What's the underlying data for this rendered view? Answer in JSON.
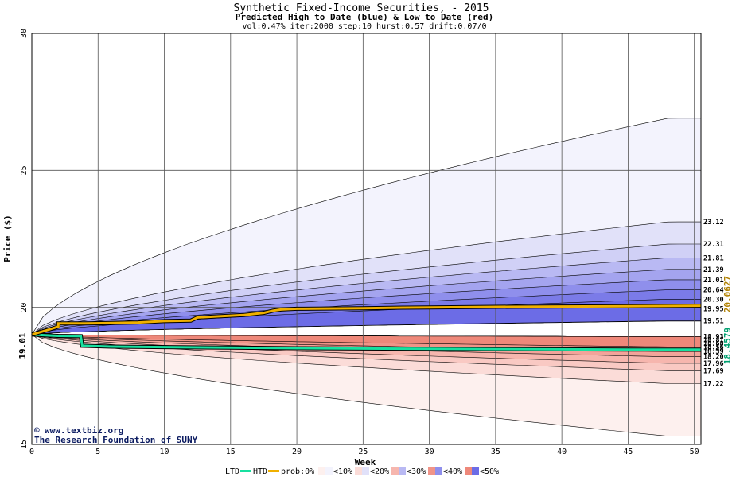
{
  "chart_data": {
    "type": "area",
    "title": "Synthetic Fixed-Income Securities,  - 2015",
    "subtitle": "Predicted High to Date (blue) &  Low to Date (red)",
    "params": "vol:0.47% iter:2000 step:10 hurst:0.57 drift:0.07/0",
    "xlabel": "Week",
    "ylabel": "Price ($)",
    "xlim": [
      0,
      50.5
    ],
    "ylim": [
      15,
      30
    ],
    "xticks": [
      0,
      5,
      10,
      15,
      20,
      25,
      30,
      35,
      40,
      45,
      50
    ],
    "yticks": [
      15,
      20,
      25,
      30
    ],
    "grid": true,
    "start_value": "19.01",
    "htd_final_label": "20.0627",
    "ltd_final_label": "18.4579",
    "blue_bands": [
      {
        "level": "<10%",
        "color": "#f3f3fd",
        "upper": 26.9,
        "lower": 19.5
      },
      {
        "level": "<20%",
        "color": "#e1e1f9",
        "upper": 23.12,
        "lower": 19.51
      },
      {
        "level": "<20%",
        "color": "#d0d0f6",
        "upper": 22.31,
        "lower": 19.51
      },
      {
        "level": "<30%",
        "color": "#b9b9f3",
        "upper": 21.81,
        "lower": 19.51
      },
      {
        "level": "<30%",
        "color": "#a4a4ef",
        "upper": 21.39,
        "lower": 19.51
      },
      {
        "level": "<40%",
        "color": "#8f8fec",
        "upper": 21.01,
        "lower": 19.51
      },
      {
        "level": "<40%",
        "color": "#7b7be8",
        "upper": 20.64,
        "lower": 19.51
      },
      {
        "level": "<50%",
        "color": "#6c6ce6",
        "upper": 20.3,
        "lower": 19.51
      }
    ],
    "red_bands": [
      {
        "level": "<10%",
        "color": "#fdf0ee",
        "lower": 15.3,
        "upper": 18.93
      },
      {
        "level": "<20%",
        "color": "#fbdcd8",
        "lower": 17.22,
        "upper": 18.93
      },
      {
        "level": "<20%",
        "color": "#f9c9c3",
        "lower": 17.69,
        "upper": 18.93
      },
      {
        "level": "<30%",
        "color": "#f6b6ae",
        "lower": 17.96,
        "upper": 18.93
      },
      {
        "level": "<30%",
        "color": "#f3a49a",
        "lower": 18.2,
        "upper": 18.93
      },
      {
        "level": "<40%",
        "color": "#f09488",
        "lower": 18.39,
        "upper": 18.93
      },
      {
        "level": "<50%",
        "color": "#ee887a",
        "lower": 18.56,
        "upper": 18.93
      }
    ],
    "end_labels": [
      "23.12",
      "22.31",
      "21.81",
      "21.39",
      "21.01",
      "20.64",
      "20.30",
      "19.95",
      "19.51",
      "18.93",
      "18.81",
      "18.68",
      "18.56",
      "18.48",
      "18.39",
      "18.20",
      "17.96",
      "17.69",
      "17.22"
    ],
    "htd_series": {
      "x": [
        0,
        1,
        2,
        2,
        4,
        6,
        8,
        10,
        12,
        12.5,
        14,
        16,
        17.5,
        18.2,
        18.8,
        20,
        25,
        28,
        30,
        35,
        40,
        45,
        50.5
      ],
      "y": [
        19.01,
        19.15,
        19.3,
        19.42,
        19.42,
        19.43,
        19.45,
        19.5,
        19.52,
        19.63,
        19.67,
        19.72,
        19.8,
        19.88,
        19.92,
        19.95,
        19.97,
        19.99,
        20.0,
        20.02,
        20.03,
        20.04,
        20.06
      ]
    },
    "ltd_series": {
      "x": [
        0,
        1,
        2,
        3.7,
        3.8,
        6,
        10,
        15,
        20,
        25,
        30,
        35,
        40,
        45,
        50.5
      ],
      "y": [
        19.01,
        18.98,
        18.96,
        18.95,
        18.6,
        18.57,
        18.55,
        18.53,
        18.51,
        18.5,
        18.49,
        18.48,
        18.47,
        18.46,
        18.46
      ]
    }
  },
  "credit": {
    "copyright_mark": "©",
    "site": "www.textbiz.org",
    "org": "The Research Foundation of SUNY"
  },
  "legend": {
    "ltd": "LTD",
    "htd": "HTD",
    "prob": "prob:0%",
    "items": [
      "<10%",
      "<20%",
      "<30%",
      "<40%",
      "<50%"
    ],
    "colors": {
      "ltd": "#18e0a0",
      "htd": "#f0b000",
      "p10": [
        "#fdf0ee",
        "#f3f3fd"
      ],
      "p20": [
        "#fbdcd8",
        "#e1e1f9"
      ],
      "p30": [
        "#f6b6ae",
        "#b9b9f3"
      ],
      "p40": [
        "#f09488",
        "#8f8fec"
      ],
      "p50": [
        "#ee887a",
        "#6c6ce6"
      ]
    }
  }
}
